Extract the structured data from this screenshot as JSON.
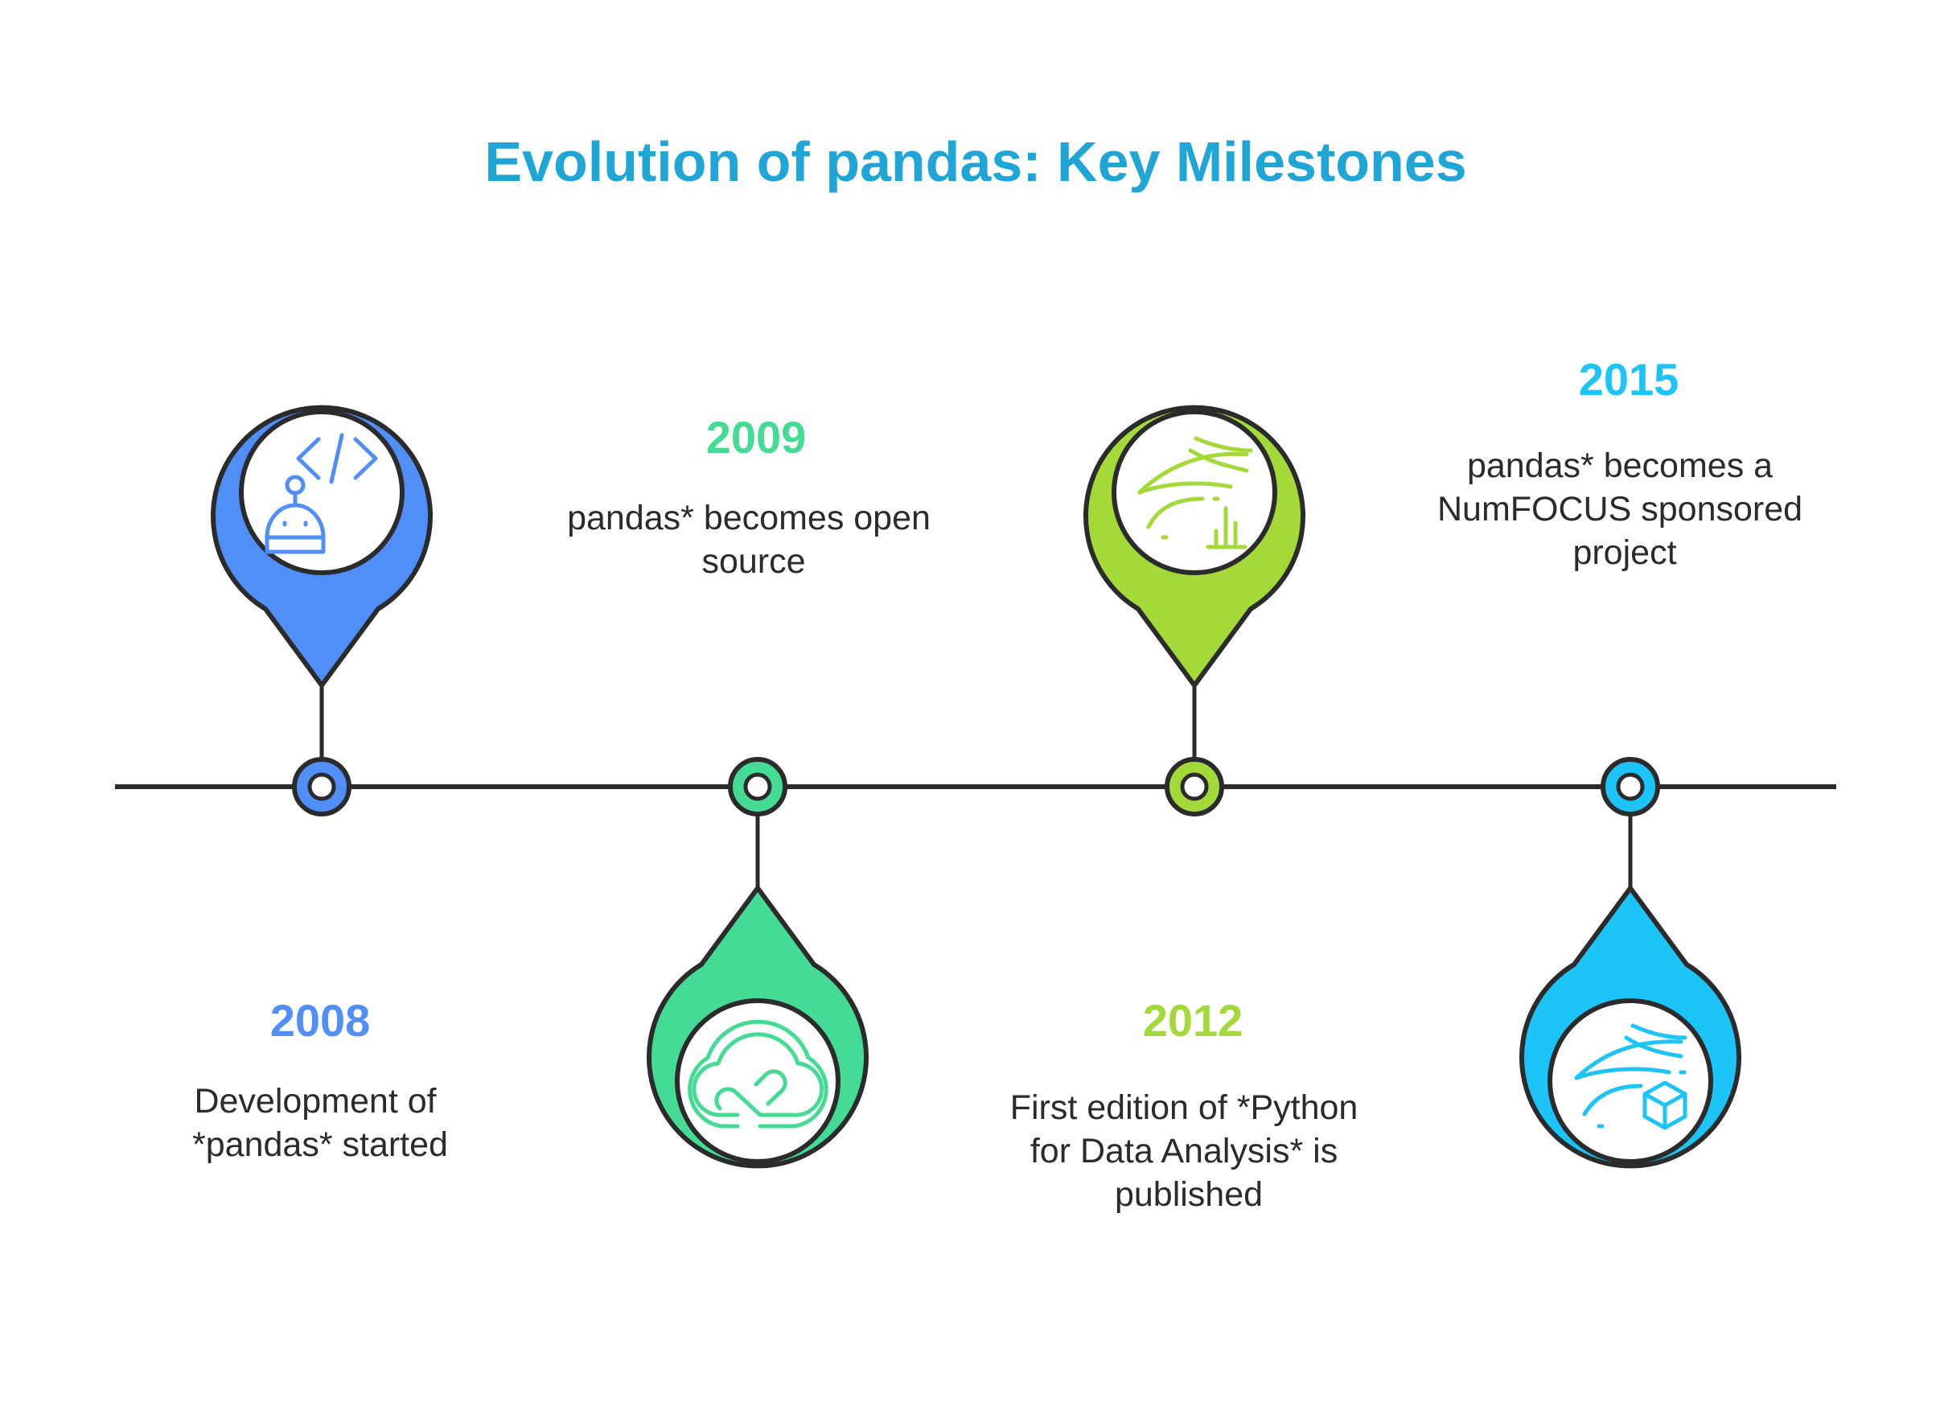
{
  "title": "Evolution of pandas: Key Milestones",
  "title_color": "#1fa6d6",
  "colors": {
    "line": "#2b2b2b",
    "blue": "#4f8ff7",
    "green": "#44dc95",
    "lime": "#a4d93a",
    "cyan": "#1cc4f8"
  },
  "milestones": [
    {
      "year": "2008",
      "desc": [
        "Development of",
        "*pandas* started"
      ],
      "color": "blue",
      "pin": "up",
      "icon": "code-robot-icon"
    },
    {
      "year": "2009",
      "desc": [
        "pandas* becomes open",
        "source"
      ],
      "color": "green",
      "pin": "down",
      "icon": "cloud-icon"
    },
    {
      "year": "2012",
      "desc": [
        "First edition of *Python",
        "for Data Analysis* is",
        "published"
      ],
      "color": "lime",
      "pin": "up",
      "icon": "data-flow-chart-icon"
    },
    {
      "year": "2015",
      "desc": [
        "pandas* becomes a",
        "NumFOCUS sponsored",
        "project"
      ],
      "color": "cyan",
      "pin": "down",
      "icon": "data-flow-cube-icon"
    }
  ]
}
